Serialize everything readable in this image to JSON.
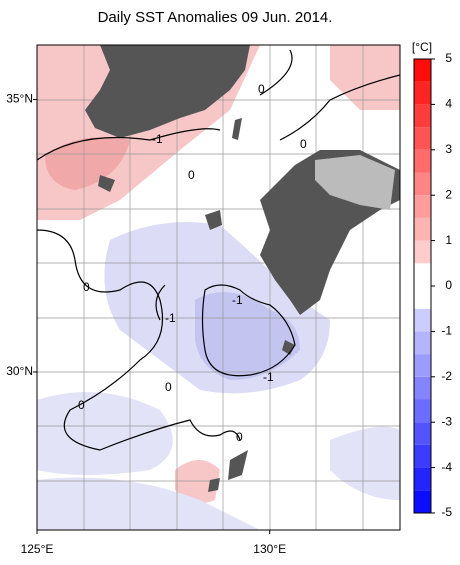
{
  "title": "Daily SST Anomalies 09 Jun. 2014.",
  "map": {
    "lat_range": [
      27.1,
      36.0
    ],
    "lon_range": [
      125,
      132.8
    ],
    "lat_ticks": [
      {
        "value": 35,
        "label": "35°N"
      },
      {
        "value": 30,
        "label": "30°N"
      }
    ],
    "lon_ticks": [
      {
        "value": 125,
        "label": "125°E"
      },
      {
        "value": 130,
        "label": "130°E"
      }
    ],
    "contour_labels": [
      "0",
      "-1",
      "0",
      "0",
      "-1",
      "-1",
      "0",
      "-1",
      "0",
      "0",
      "0"
    ]
  },
  "colorbar": {
    "label": "[°C]",
    "range": [
      -5,
      5
    ],
    "ticks": [
      5,
      4,
      3,
      2,
      1,
      0,
      -1,
      -2,
      -3,
      -4,
      -5
    ]
  }
}
